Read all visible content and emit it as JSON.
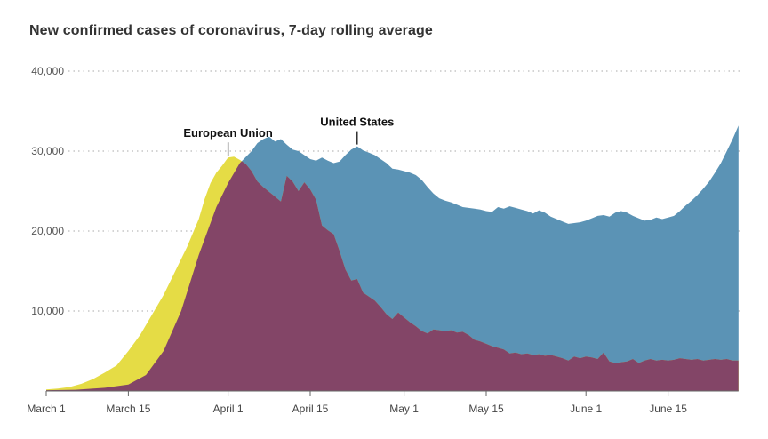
{
  "chart_data": {
    "type": "area",
    "title": "New confirmed cases of coronavirus, 7-day rolling average",
    "xlabel": "",
    "ylabel": "",
    "ylim": [
      0,
      40000
    ],
    "grid": true,
    "y_ticks": [
      {
        "value": 10000,
        "label": "10,000"
      },
      {
        "value": 20000,
        "label": "20,000"
      },
      {
        "value": 30000,
        "label": "30,000"
      },
      {
        "value": 40000,
        "label": "40,000"
      }
    ],
    "x_ticks": [
      {
        "day": 0,
        "label": "March 1"
      },
      {
        "day": 14,
        "label": "March 15"
      },
      {
        "day": 31,
        "label": "April 1"
      },
      {
        "day": 45,
        "label": "April 15"
      },
      {
        "day": 61,
        "label": "May 1"
      },
      {
        "day": 75,
        "label": "May 15"
      },
      {
        "day": 92,
        "label": "June 1"
      },
      {
        "day": 106,
        "label": "June 15"
      }
    ],
    "series": [
      {
        "name": "United States",
        "color": "#5b93b5",
        "points": [
          [
            0,
            100
          ],
          [
            5,
            150
          ],
          [
            10,
            400
          ],
          [
            14,
            800
          ],
          [
            17,
            2000
          ],
          [
            20,
            5000
          ],
          [
            23,
            10000
          ],
          [
            26,
            17000
          ],
          [
            29,
            23000
          ],
          [
            31,
            26000
          ],
          [
            33,
            28500
          ],
          [
            35,
            30000
          ],
          [
            36,
            31000
          ],
          [
            37,
            31500
          ],
          [
            38,
            31800
          ],
          [
            39,
            31200
          ],
          [
            40,
            31500
          ],
          [
            41,
            30800
          ],
          [
            42,
            30200
          ],
          [
            43,
            30000
          ],
          [
            44,
            29500
          ],
          [
            45,
            29000
          ],
          [
            46,
            28800
          ],
          [
            47,
            29200
          ],
          [
            48,
            28800
          ],
          [
            49,
            28500
          ],
          [
            50,
            28700
          ],
          [
            51,
            29500
          ],
          [
            52,
            30200
          ],
          [
            53,
            30600
          ],
          [
            54,
            30100
          ],
          [
            55,
            29800
          ],
          [
            56,
            29500
          ],
          [
            57,
            29000
          ],
          [
            58,
            28500
          ],
          [
            59,
            27800
          ],
          [
            60,
            27700
          ],
          [
            61,
            27500
          ],
          [
            62,
            27300
          ],
          [
            63,
            27000
          ],
          [
            64,
            26400
          ],
          [
            65,
            25500
          ],
          [
            66,
            24700
          ],
          [
            67,
            24100
          ],
          [
            68,
            23800
          ],
          [
            69,
            23600
          ],
          [
            70,
            23300
          ],
          [
            71,
            23000
          ],
          [
            72,
            22900
          ],
          [
            73,
            22800
          ],
          [
            74,
            22700
          ],
          [
            75,
            22500
          ],
          [
            76,
            22400
          ],
          [
            77,
            23000
          ],
          [
            78,
            22800
          ],
          [
            79,
            23100
          ],
          [
            80,
            22900
          ],
          [
            81,
            22700
          ],
          [
            82,
            22500
          ],
          [
            83,
            22200
          ],
          [
            84,
            22600
          ],
          [
            85,
            22300
          ],
          [
            86,
            21800
          ],
          [
            87,
            21500
          ],
          [
            88,
            21200
          ],
          [
            89,
            20900
          ],
          [
            90,
            21000
          ],
          [
            91,
            21100
          ],
          [
            92,
            21300
          ],
          [
            93,
            21600
          ],
          [
            94,
            21900
          ],
          [
            95,
            22000
          ],
          [
            96,
            21800
          ],
          [
            97,
            22300
          ],
          [
            98,
            22500
          ],
          [
            99,
            22300
          ],
          [
            100,
            21900
          ],
          [
            101,
            21600
          ],
          [
            102,
            21300
          ],
          [
            103,
            21400
          ],
          [
            104,
            21700
          ],
          [
            105,
            21500
          ],
          [
            106,
            21700
          ],
          [
            107,
            21900
          ],
          [
            108,
            22500
          ],
          [
            109,
            23200
          ],
          [
            110,
            23800
          ],
          [
            111,
            24500
          ],
          [
            112,
            25300
          ],
          [
            113,
            26200
          ],
          [
            114,
            27300
          ],
          [
            115,
            28500
          ],
          [
            116,
            30000
          ],
          [
            117,
            31500
          ],
          [
            118,
            33200
          ]
        ]
      },
      {
        "name": "European Union",
        "color": "#e5dc45",
        "points": [
          [
            0,
            200
          ],
          [
            2,
            300
          ],
          [
            4,
            500
          ],
          [
            6,
            900
          ],
          [
            8,
            1500
          ],
          [
            10,
            2300
          ],
          [
            12,
            3200
          ],
          [
            14,
            5000
          ],
          [
            16,
            7000
          ],
          [
            18,
            9500
          ],
          [
            20,
            12000
          ],
          [
            22,
            15000
          ],
          [
            24,
            18000
          ],
          [
            26,
            21500
          ],
          [
            27,
            24000
          ],
          [
            28,
            26000
          ],
          [
            29,
            27300
          ],
          [
            30,
            28200
          ],
          [
            31,
            29200
          ],
          [
            32,
            29300
          ],
          [
            33,
            28900
          ],
          [
            34,
            28400
          ],
          [
            35,
            27500
          ],
          [
            36,
            26200
          ],
          [
            37,
            25500
          ],
          [
            38,
            24900
          ],
          [
            39,
            24300
          ],
          [
            40,
            23700
          ],
          [
            41,
            26900
          ],
          [
            42,
            26200
          ],
          [
            43,
            25000
          ],
          [
            44,
            26100
          ],
          [
            45,
            25200
          ],
          [
            46,
            23900
          ],
          [
            47,
            20700
          ],
          [
            48,
            20100
          ],
          [
            49,
            19600
          ],
          [
            50,
            17500
          ],
          [
            51,
            15200
          ],
          [
            52,
            13800
          ],
          [
            53,
            14000
          ],
          [
            54,
            12300
          ],
          [
            55,
            11800
          ],
          [
            56,
            11300
          ],
          [
            57,
            10500
          ],
          [
            58,
            9600
          ],
          [
            59,
            9000
          ],
          [
            60,
            9800
          ],
          [
            61,
            9200
          ],
          [
            62,
            8600
          ],
          [
            63,
            8100
          ],
          [
            64,
            7500
          ],
          [
            65,
            7200
          ],
          [
            66,
            7700
          ],
          [
            67,
            7600
          ],
          [
            68,
            7500
          ],
          [
            69,
            7600
          ],
          [
            70,
            7300
          ],
          [
            71,
            7400
          ],
          [
            72,
            7000
          ],
          [
            73,
            6400
          ],
          [
            74,
            6200
          ],
          [
            75,
            5900
          ],
          [
            76,
            5600
          ],
          [
            77,
            5400
          ],
          [
            78,
            5200
          ],
          [
            79,
            4700
          ],
          [
            80,
            4800
          ],
          [
            81,
            4600
          ],
          [
            82,
            4700
          ],
          [
            83,
            4500
          ],
          [
            84,
            4600
          ],
          [
            85,
            4400
          ],
          [
            86,
            4500
          ],
          [
            87,
            4300
          ],
          [
            88,
            4100
          ],
          [
            89,
            3800
          ],
          [
            90,
            4300
          ],
          [
            91,
            4100
          ],
          [
            92,
            4300
          ],
          [
            93,
            4200
          ],
          [
            94,
            4000
          ],
          [
            95,
            4800
          ],
          [
            96,
            3700
          ],
          [
            97,
            3500
          ],
          [
            98,
            3600
          ],
          [
            99,
            3700
          ],
          [
            100,
            4000
          ],
          [
            101,
            3500
          ],
          [
            102,
            3800
          ],
          [
            103,
            4000
          ],
          [
            104,
            3800
          ],
          [
            105,
            3900
          ],
          [
            106,
            3800
          ],
          [
            107,
            3900
          ],
          [
            108,
            4100
          ],
          [
            109,
            4000
          ],
          [
            110,
            3900
          ],
          [
            111,
            4000
          ],
          [
            112,
            3800
          ],
          [
            113,
            3900
          ],
          [
            114,
            4000
          ],
          [
            115,
            3900
          ],
          [
            116,
            4000
          ],
          [
            117,
            3800
          ],
          [
            118,
            3800
          ]
        ]
      }
    ],
    "overlap_color": "#834567",
    "annotations": [
      {
        "text": "European Union",
        "series": "European Union",
        "day": 31
      },
      {
        "text": "United States",
        "series": "United States",
        "day": 53
      }
    ]
  }
}
